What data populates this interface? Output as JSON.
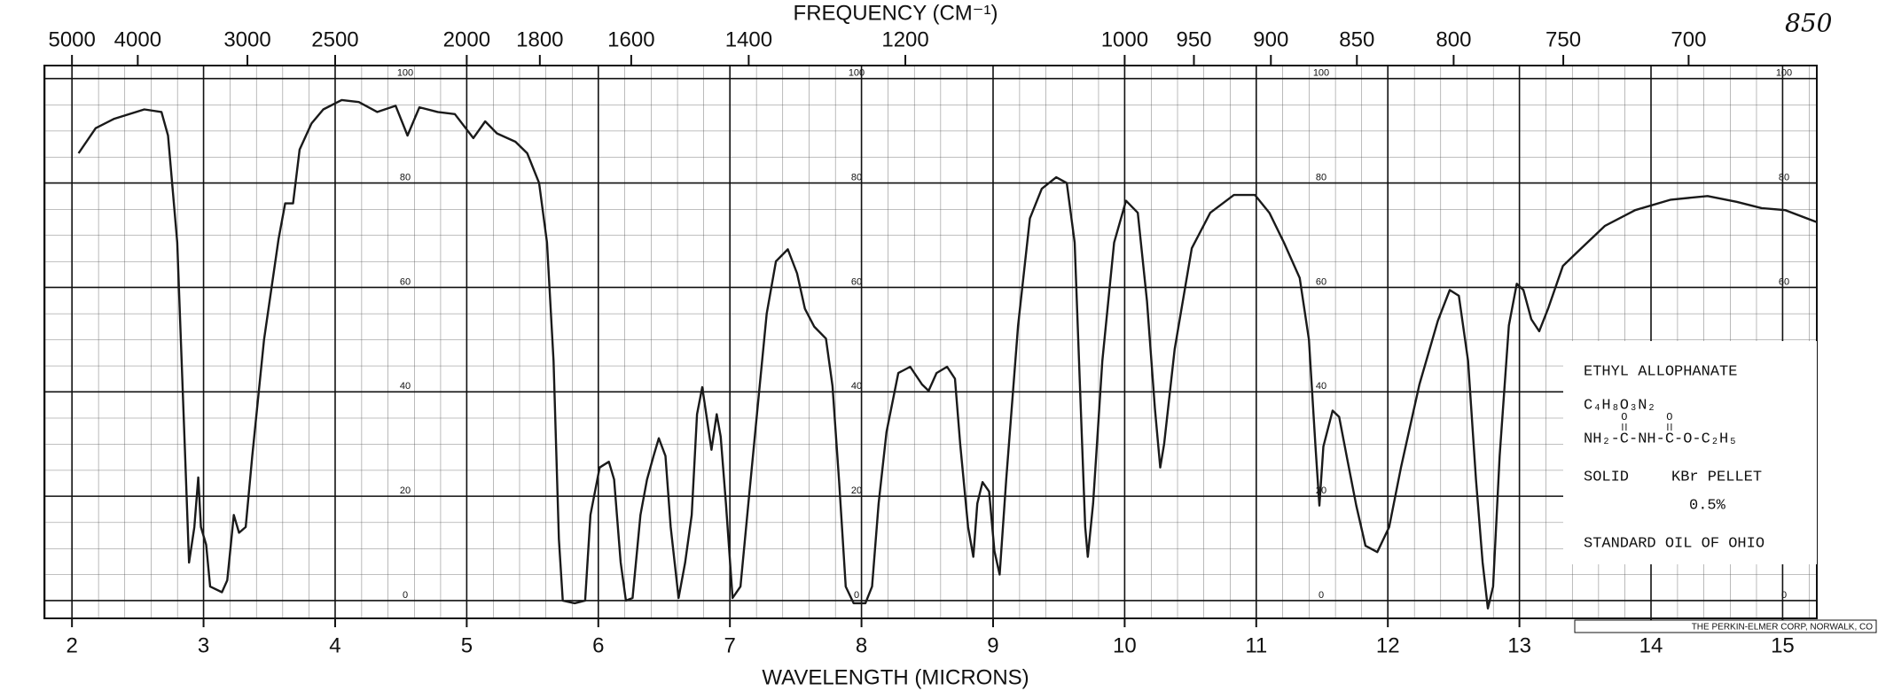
{
  "chart_data": {
    "type": "line",
    "title": "FREQUENCY (CM⁻¹)",
    "x_label": "WAVELENGTH (MICRONS)",
    "handwritten_note": "850",
    "publisher": "THE PERKIN-ELMER CORP, NORWALK, CO",
    "sample": {
      "name": "ETHYL ALLOPHANATE",
      "formula": "C₄H₈O₃N₂",
      "structure_oxygens": [
        "O",
        "O"
      ],
      "structure": "NH₂-C-NH-C-O-C₂H₅",
      "state": "SOLID",
      "method": "KBr PELLET",
      "concentration": "0.5%",
      "source": "STANDARD OIL OF OHIO"
    },
    "color": "#1a1a1a",
    "grid": true,
    "xlim": [
      1.79,
      15.26
    ],
    "ylim": [
      -3.4,
      102.5
    ],
    "xticks": [
      2,
      3,
      4,
      5,
      6,
      7,
      8,
      9,
      10,
      11,
      12,
      13,
      14,
      15
    ],
    "yticks": [
      0,
      20,
      40,
      60,
      80,
      100
    ],
    "x2ticks": [
      5000,
      4000,
      3000,
      2500,
      2000,
      1800,
      1600,
      1400,
      1200,
      1000,
      950,
      900,
      850,
      800,
      750,
      700
    ],
    "x": [
      2.05,
      2.18,
      2.32,
      2.55,
      2.68,
      2.73,
      2.8,
      2.86,
      2.89,
      2.93,
      2.96,
      2.98,
      3.02,
      3.05,
      3.14,
      3.18,
      3.23,
      3.27,
      3.32,
      3.37,
      3.46,
      3.57,
      3.62,
      3.68,
      3.73,
      3.82,
      3.91,
      4.05,
      4.18,
      4.32,
      4.46,
      4.55,
      4.64,
      4.78,
      4.91,
      5.05,
      5.14,
      5.23,
      5.37,
      5.46,
      5.55,
      5.61,
      5.66,
      5.7,
      5.73,
      5.82,
      5.9,
      5.94,
      6.01,
      6.08,
      6.12,
      6.17,
      6.21,
      6.26,
      6.32,
      6.37,
      6.42,
      6.46,
      6.51,
      6.55,
      6.61,
      6.66,
      6.71,
      6.75,
      6.79,
      6.82,
      6.86,
      6.9,
      6.93,
      6.97,
      7.02,
      7.08,
      7.14,
      7.21,
      7.28,
      7.35,
      7.44,
      7.51,
      7.57,
      7.64,
      7.73,
      7.78,
      7.83,
      7.88,
      7.94,
      8.03,
      8.08,
      8.13,
      8.19,
      8.28,
      8.37,
      8.46,
      8.51,
      8.57,
      8.65,
      8.71,
      8.75,
      8.81,
      8.85,
      8.88,
      8.92,
      8.97,
      9.01,
      9.05,
      9.1,
      9.19,
      9.28,
      9.37,
      9.48,
      9.56,
      9.62,
      9.66,
      9.7,
      9.72,
      9.76,
      9.83,
      9.92,
      10.01,
      10.1,
      10.17,
      10.23,
      10.27,
      10.3,
      10.38,
      10.51,
      10.65,
      10.83,
      10.99,
      11.1,
      11.21,
      11.33,
      11.4,
      11.45,
      11.48,
      11.51,
      11.58,
      11.63,
      11.69,
      11.76,
      11.83,
      11.92,
      12.01,
      12.1,
      12.24,
      12.38,
      12.47,
      12.54,
      12.61,
      12.67,
      12.72,
      12.76,
      12.8,
      12.85,
      12.92,
      12.98,
      13.03,
      13.09,
      13.15,
      13.22,
      13.33,
      13.47,
      13.65,
      13.88,
      14.15,
      14.43,
      14.65,
      14.84,
      15.02,
      15.26
    ],
    "values": [
      85.7,
      90.5,
      92.3,
      94.1,
      93.6,
      89.1,
      68.6,
      27.7,
      7.3,
      14.1,
      23.6,
      14.1,
      10.7,
      2.7,
      1.6,
      3.9,
      16.4,
      13.0,
      14.1,
      27.7,
      50.0,
      69.3,
      76.1,
      76.1,
      86.4,
      91.4,
      94.1,
      95.9,
      95.5,
      93.6,
      94.8,
      89.1,
      94.5,
      93.6,
      93.2,
      88.6,
      91.8,
      89.5,
      87.9,
      85.7,
      80.0,
      68.6,
      45.9,
      11.8,
      0,
      -0.5,
      0,
      16.4,
      25.5,
      26.6,
      23.2,
      7.3,
      0,
      0.5,
      16.4,
      23.2,
      27.7,
      31.1,
      27.7,
      14.1,
      0.5,
      7.3,
      16.4,
      35.7,
      40.9,
      35.7,
      28.9,
      35.7,
      31.4,
      18.6,
      0.5,
      2.7,
      18.6,
      36.8,
      55.0,
      65.0,
      67.3,
      62.7,
      55.9,
      52.5,
      50.2,
      41.1,
      22.7,
      2.7,
      -0.5,
      -0.5,
      2.7,
      18.6,
      32.3,
      43.6,
      44.8,
      41.4,
      40.2,
      43.6,
      44.8,
      42.5,
      30.0,
      14.1,
      8.4,
      18.6,
      22.7,
      20.9,
      9.5,
      5.0,
      23.2,
      52.7,
      73.2,
      78.9,
      81.1,
      80.0,
      68.6,
      41.4,
      14.1,
      8.4,
      18.6,
      45.9,
      68.6,
      76.6,
      74.3,
      57.3,
      36.8,
      25.5,
      30.0,
      48.2,
      67.5,
      74.3,
      77.7,
      77.7,
      74.3,
      68.6,
      61.8,
      50.0,
      29.5,
      18.2,
      29.5,
      36.4,
      35.2,
      27.3,
      18.2,
      10.5,
      9.3,
      14.1,
      25.5,
      41.4,
      53.6,
      59.5,
      58.4,
      45.9,
      23.2,
      7.3,
      -1.5,
      2.7,
      27.7,
      52.7,
      60.7,
      59.5,
      53.9,
      51.6,
      56.1,
      64.1,
      67.5,
      71.8,
      74.8,
      76.8,
      77.5,
      76.4,
      75.2,
      74.8,
      72.5
    ]
  }
}
